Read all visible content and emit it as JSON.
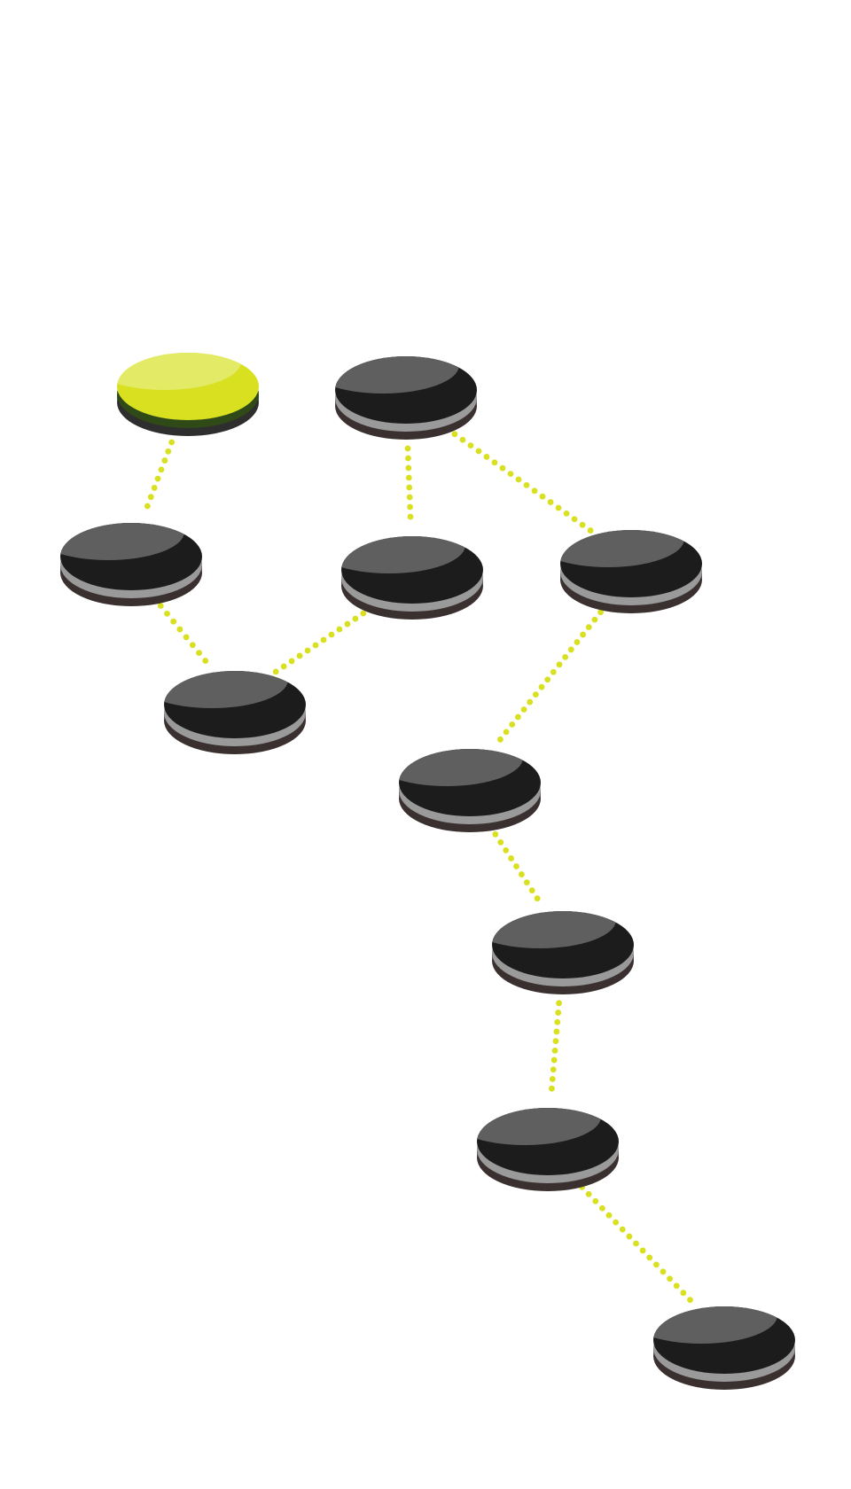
{
  "level_map": {
    "colors": {
      "path_dots": "#d8e020",
      "active_node": "#d8e020",
      "locked_node": "#1c1c1c"
    },
    "nodes": [
      {
        "id": "n1",
        "state": "active"
      },
      {
        "id": "n2",
        "state": "locked"
      },
      {
        "id": "n3",
        "state": "locked"
      },
      {
        "id": "n4",
        "state": "locked"
      },
      {
        "id": "n5",
        "state": "locked"
      },
      {
        "id": "n6",
        "state": "locked"
      },
      {
        "id": "n7",
        "state": "locked"
      },
      {
        "id": "n8",
        "state": "locked"
      },
      {
        "id": "n9",
        "state": "locked"
      },
      {
        "id": "n10",
        "state": "locked"
      }
    ],
    "paths": [
      [
        "n1",
        "n3"
      ],
      [
        "n3",
        "n5"
      ],
      [
        "n4",
        "n5"
      ],
      [
        "n2",
        "n4"
      ],
      [
        "n2",
        "n6"
      ],
      [
        "n6",
        "n7"
      ],
      [
        "n7",
        "n8"
      ],
      [
        "n8",
        "n9"
      ],
      [
        "n9",
        "n10"
      ]
    ]
  }
}
